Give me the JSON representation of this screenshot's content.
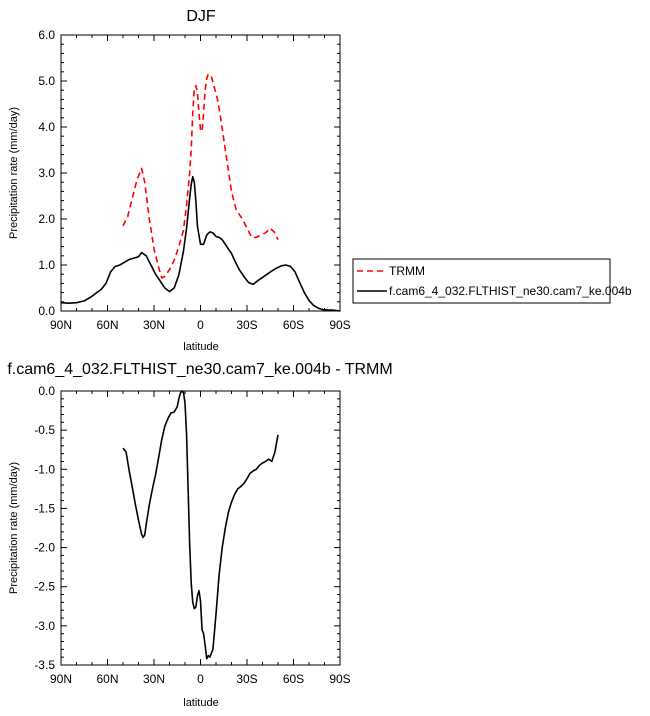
{
  "chart_data": [
    {
      "type": "line",
      "title": "DJF",
      "xlabel": "latitude",
      "ylabel": "Precipitation rate (mm/day)",
      "xlim": [
        -90,
        90
      ],
      "ylim": [
        0,
        6
      ],
      "x_ticks": [
        -90,
        -60,
        -30,
        0,
        30,
        60,
        90
      ],
      "x_tick_labels": [
        "90N",
        "60N",
        "30N",
        "0",
        "30S",
        "60S",
        "90S"
      ],
      "y_ticks": [
        0,
        1,
        2,
        3,
        4,
        5,
        6
      ],
      "y_tick_labels": [
        "0.0",
        "1.0",
        "2.0",
        "3.0",
        "4.0",
        "5.0",
        "6.0"
      ],
      "legend_position": "right",
      "series": [
        {
          "name": "TRMM",
          "color": "#ff0000",
          "dash": "dashed",
          "x": [
            -50,
            -47,
            -44,
            -41,
            -38,
            -36,
            -33,
            -30,
            -27,
            -25,
            -23,
            -20,
            -17,
            -14,
            -11,
            -9,
            -7,
            -6,
            -5,
            -4,
            -3,
            -2,
            -1,
            0,
            1,
            2,
            3,
            4,
            5,
            7,
            9,
            11,
            13,
            16,
            20,
            23,
            27,
            30,
            33,
            36,
            39,
            42,
            45,
            48,
            50
          ],
          "y": [
            1.85,
            2.05,
            2.45,
            2.85,
            3.1,
            2.8,
            2.0,
            1.35,
            0.95,
            0.72,
            0.75,
            0.9,
            1.1,
            1.4,
            1.75,
            2.3,
            3.0,
            3.5,
            4.3,
            4.85,
            4.9,
            4.75,
            4.3,
            3.95,
            3.9,
            4.3,
            4.8,
            5.05,
            5.15,
            5.1,
            4.85,
            4.6,
            4.2,
            3.5,
            2.6,
            2.2,
            2.0,
            1.8,
            1.6,
            1.6,
            1.65,
            1.7,
            1.8,
            1.7,
            1.55
          ]
        },
        {
          "name": "f.cam6_4_032.FLTHIST_ne30.cam7_ke.004b",
          "color": "#000000",
          "dash": "solid",
          "x": [
            -90,
            -85,
            -80,
            -75,
            -70,
            -67,
            -64,
            -61,
            -58,
            -55,
            -52,
            -49,
            -46,
            -43,
            -40,
            -38,
            -35,
            -32,
            -29,
            -26,
            -23,
            -20,
            -17,
            -14,
            -11,
            -9,
            -7,
            -6,
            -5,
            -4,
            -3,
            -2,
            0,
            2,
            4,
            6,
            8,
            10,
            12,
            14,
            16,
            18,
            20,
            22,
            25,
            28,
            31,
            34,
            37,
            40,
            43,
            46,
            49,
            52,
            55,
            58,
            61,
            64,
            67,
            70,
            73,
            76,
            79,
            82,
            85,
            90
          ],
          "y": [
            0.18,
            0.17,
            0.18,
            0.22,
            0.32,
            0.4,
            0.47,
            0.6,
            0.85,
            0.97,
            1.0,
            1.06,
            1.12,
            1.15,
            1.18,
            1.27,
            1.2,
            1.0,
            0.8,
            0.65,
            0.5,
            0.42,
            0.5,
            0.78,
            1.3,
            1.8,
            2.45,
            2.75,
            2.92,
            2.8,
            2.4,
            1.85,
            1.45,
            1.45,
            1.65,
            1.72,
            1.7,
            1.62,
            1.6,
            1.55,
            1.45,
            1.35,
            1.25,
            1.1,
            0.9,
            0.75,
            0.62,
            0.58,
            0.66,
            0.73,
            0.8,
            0.87,
            0.93,
            0.98,
            1.0,
            0.97,
            0.85,
            0.62,
            0.4,
            0.23,
            0.12,
            0.06,
            0.03,
            0.02,
            0.02,
            0.0
          ]
        }
      ]
    },
    {
      "type": "line",
      "title": "f.cam6_4_032.FLTHIST_ne30.cam7_ke.004b - TRMM",
      "xlabel": "latitude",
      "ylabel": "Precipitation rate (mm/day)",
      "xlim": [
        -90,
        90
      ],
      "ylim": [
        -3.5,
        0
      ],
      "x_ticks": [
        -90,
        -60,
        -30,
        0,
        30,
        60,
        90
      ],
      "x_tick_labels": [
        "90N",
        "60N",
        "30N",
        "0",
        "30S",
        "60S",
        "90S"
      ],
      "y_ticks": [
        -3.5,
        -3.0,
        -2.5,
        -2.0,
        -1.5,
        -1.0,
        -0.5,
        0.0
      ],
      "y_tick_labels": [
        "-3.5",
        "-3.0",
        "-2.5",
        "-2.0",
        "-1.5",
        "-1.0",
        "-0.5",
        "0.0"
      ],
      "series": [
        {
          "color": "#000000",
          "dash": "solid",
          "x": [
            -50,
            -48,
            -46,
            -44,
            -42,
            -40,
            -38,
            -37,
            -36,
            -35,
            -33,
            -31,
            -29,
            -27,
            -25,
            -23,
            -21,
            -19,
            -17,
            -15,
            -14,
            -13,
            -12,
            -11,
            -10,
            -9,
            -8,
            -7,
            -6,
            -5,
            -4,
            -3,
            -2,
            -1,
            0,
            1,
            2,
            3,
            4,
            5,
            6,
            7,
            8,
            9,
            10,
            11,
            12,
            14,
            16,
            18,
            20,
            22,
            24,
            26,
            28,
            30,
            32,
            34,
            36,
            38,
            40,
            42,
            44,
            46,
            48,
            50
          ],
          "y": [
            -0.73,
            -0.78,
            -1.02,
            -1.23,
            -1.45,
            -1.65,
            -1.83,
            -1.87,
            -1.84,
            -1.7,
            -1.45,
            -1.25,
            -1.07,
            -0.85,
            -0.62,
            -0.45,
            -0.35,
            -0.28,
            -0.27,
            -0.2,
            -0.1,
            -0.03,
            0.0,
            -0.02,
            -0.15,
            -0.55,
            -1.25,
            -1.95,
            -2.45,
            -2.7,
            -2.78,
            -2.76,
            -2.62,
            -2.55,
            -2.68,
            -3.05,
            -3.1,
            -3.25,
            -3.42,
            -3.38,
            -3.4,
            -3.35,
            -3.3,
            -3.08,
            -2.85,
            -2.6,
            -2.35,
            -2.0,
            -1.75,
            -1.55,
            -1.42,
            -1.32,
            -1.25,
            -1.22,
            -1.18,
            -1.12,
            -1.05,
            -1.02,
            -1.0,
            -0.95,
            -0.92,
            -0.9,
            -0.87,
            -0.9,
            -0.78,
            -0.56
          ]
        }
      ]
    }
  ]
}
